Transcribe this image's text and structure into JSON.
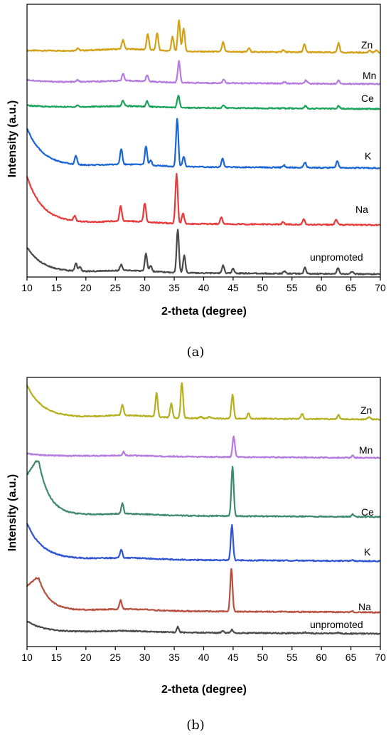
{
  "panels": [
    {
      "label": "(a)",
      "chart_data": {
        "type": "line",
        "xlabel": "2-theta (degree)",
        "ylabel": "Intensity (a.u.)",
        "xlim": [
          10,
          70
        ],
        "xticks": [
          10,
          15,
          20,
          25,
          30,
          35,
          40,
          45,
          50,
          55,
          60,
          65,
          70
        ],
        "y_ticks_shown": false,
        "legend": "labels beside each curve at right",
        "series": [
          {
            "name": "Zn",
            "color": "#d4a017",
            "peaks": [
              [
                18.6,
                0.08
              ],
              [
                26.3,
                0.3
              ],
              [
                30.5,
                0.5
              ],
              [
                32.1,
                0.55
              ],
              [
                34.7,
                0.45
              ],
              [
                35.8,
                1.0
              ],
              [
                36.6,
                0.75
              ],
              [
                43.3,
                0.3
              ],
              [
                47.7,
                0.12
              ],
              [
                53.5,
                0.07
              ],
              [
                57.1,
                0.25
              ],
              [
                62.9,
                0.3
              ],
              [
                68.2,
                0.08
              ],
              [
                69.3,
                0.07
              ]
            ]
          },
          {
            "name": "Mn",
            "color": "#b57be0",
            "peaks": [
              [
                18.6,
                0.07
              ],
              [
                26.3,
                0.25
              ],
              [
                30.4,
                0.22
              ],
              [
                35.8,
                0.75
              ],
              [
                43.4,
                0.12
              ],
              [
                53.7,
                0.06
              ],
              [
                57.4,
                0.12
              ],
              [
                62.9,
                0.12
              ]
            ]
          },
          {
            "name": "Ce",
            "color": "#1aa35a",
            "peaks": [
              [
                18.6,
                0.06
              ],
              [
                26.3,
                0.2
              ],
              [
                30.4,
                0.2
              ],
              [
                35.7,
                0.45
              ],
              [
                43.4,
                0.1
              ],
              [
                57.3,
                0.1
              ],
              [
                62.9,
                0.1
              ]
            ]
          },
          {
            "name": "K",
            "color": "#1a66d6",
            "peaks": [
              [
                18.3,
                0.25
              ],
              [
                26.0,
                0.45
              ],
              [
                30.2,
                0.55
              ],
              [
                31.0,
                0.15
              ],
              [
                35.5,
                1.4
              ],
              [
                36.6,
                0.3
              ],
              [
                43.2,
                0.25
              ],
              [
                53.6,
                0.07
              ],
              [
                57.2,
                0.15
              ],
              [
                62.7,
                0.2
              ]
            ]
          },
          {
            "name": "Na",
            "color": "#e83a3a",
            "peaks": [
              [
                18.1,
                0.15
              ],
              [
                25.9,
                0.45
              ],
              [
                30.0,
                0.55
              ],
              [
                35.4,
                1.45
              ],
              [
                36.5,
                0.3
              ],
              [
                43.0,
                0.2
              ],
              [
                53.5,
                0.07
              ],
              [
                57.0,
                0.15
              ],
              [
                62.5,
                0.15
              ]
            ]
          },
          {
            "name": "unpromoted",
            "color": "#4a4a4a",
            "peaks": [
              [
                18.3,
                0.2
              ],
              [
                19.0,
                0.12
              ],
              [
                26.0,
                0.15
              ],
              [
                30.2,
                0.45
              ],
              [
                31.0,
                0.15
              ],
              [
                35.6,
                1.1
              ],
              [
                36.7,
                0.45
              ],
              [
                43.3,
                0.2
              ],
              [
                45.0,
                0.12
              ],
              [
                53.7,
                0.06
              ],
              [
                57.2,
                0.15
              ],
              [
                62.8,
                0.15
              ],
              [
                65.2,
                0.06
              ]
            ]
          }
        ]
      }
    },
    {
      "label": "(b)",
      "chart_data": {
        "type": "line",
        "xlabel": "2-theta (degree)",
        "ylabel": "Intensity (a.u.)",
        "xlim": [
          10,
          70
        ],
        "xticks": [
          10,
          15,
          20,
          25,
          30,
          35,
          40,
          45,
          50,
          55,
          60,
          65,
          70
        ],
        "y_ticks_shown": false,
        "legend": "labels beside each curve at right",
        "series": [
          {
            "name": "Zn",
            "color": "#b5b020",
            "peaks": [
              [
                26.2,
                0.4
              ],
              [
                32.0,
                0.9
              ],
              [
                34.5,
                0.55
              ],
              [
                36.3,
                1.35
              ],
              [
                39.5,
                0.07
              ],
              [
                41.0,
                0.07
              ],
              [
                44.9,
                0.9
              ],
              [
                47.6,
                0.2
              ],
              [
                56.7,
                0.2
              ],
              [
                62.9,
                0.15
              ],
              [
                68.1,
                0.1
              ]
            ]
          },
          {
            "name": "Mn",
            "color": "#b57be0",
            "peaks": [
              [
                26.4,
                0.15
              ],
              [
                45.1,
                0.85
              ],
              [
                65.3,
                0.1
              ]
            ]
          },
          {
            "name": "Ce",
            "color": "#3f8a6e",
            "peaks": [
              [
                26.2,
                0.4
              ],
              [
                44.9,
                1.95
              ],
              [
                65.3,
                0.1
              ]
            ]
          },
          {
            "name": "K",
            "color": "#2f55d4",
            "peaks": [
              [
                26.0,
                0.35
              ],
              [
                44.8,
                1.45
              ],
              [
                65.2,
                0.05
              ]
            ]
          },
          {
            "name": "Na",
            "color": "#b8503f",
            "peaks": [
              [
                25.9,
                0.35
              ],
              [
                44.7,
                1.65
              ],
              [
                65.2,
                0.05
              ]
            ]
          },
          {
            "name": "unpromoted",
            "color": "#4a4a4a",
            "peaks": [
              [
                35.6,
                0.25
              ],
              [
                43.2,
                0.1
              ],
              [
                44.8,
                0.15
              ],
              [
                57.2,
                0.05
              ],
              [
                62.9,
                0.05
              ]
            ]
          }
        ]
      }
    }
  ]
}
